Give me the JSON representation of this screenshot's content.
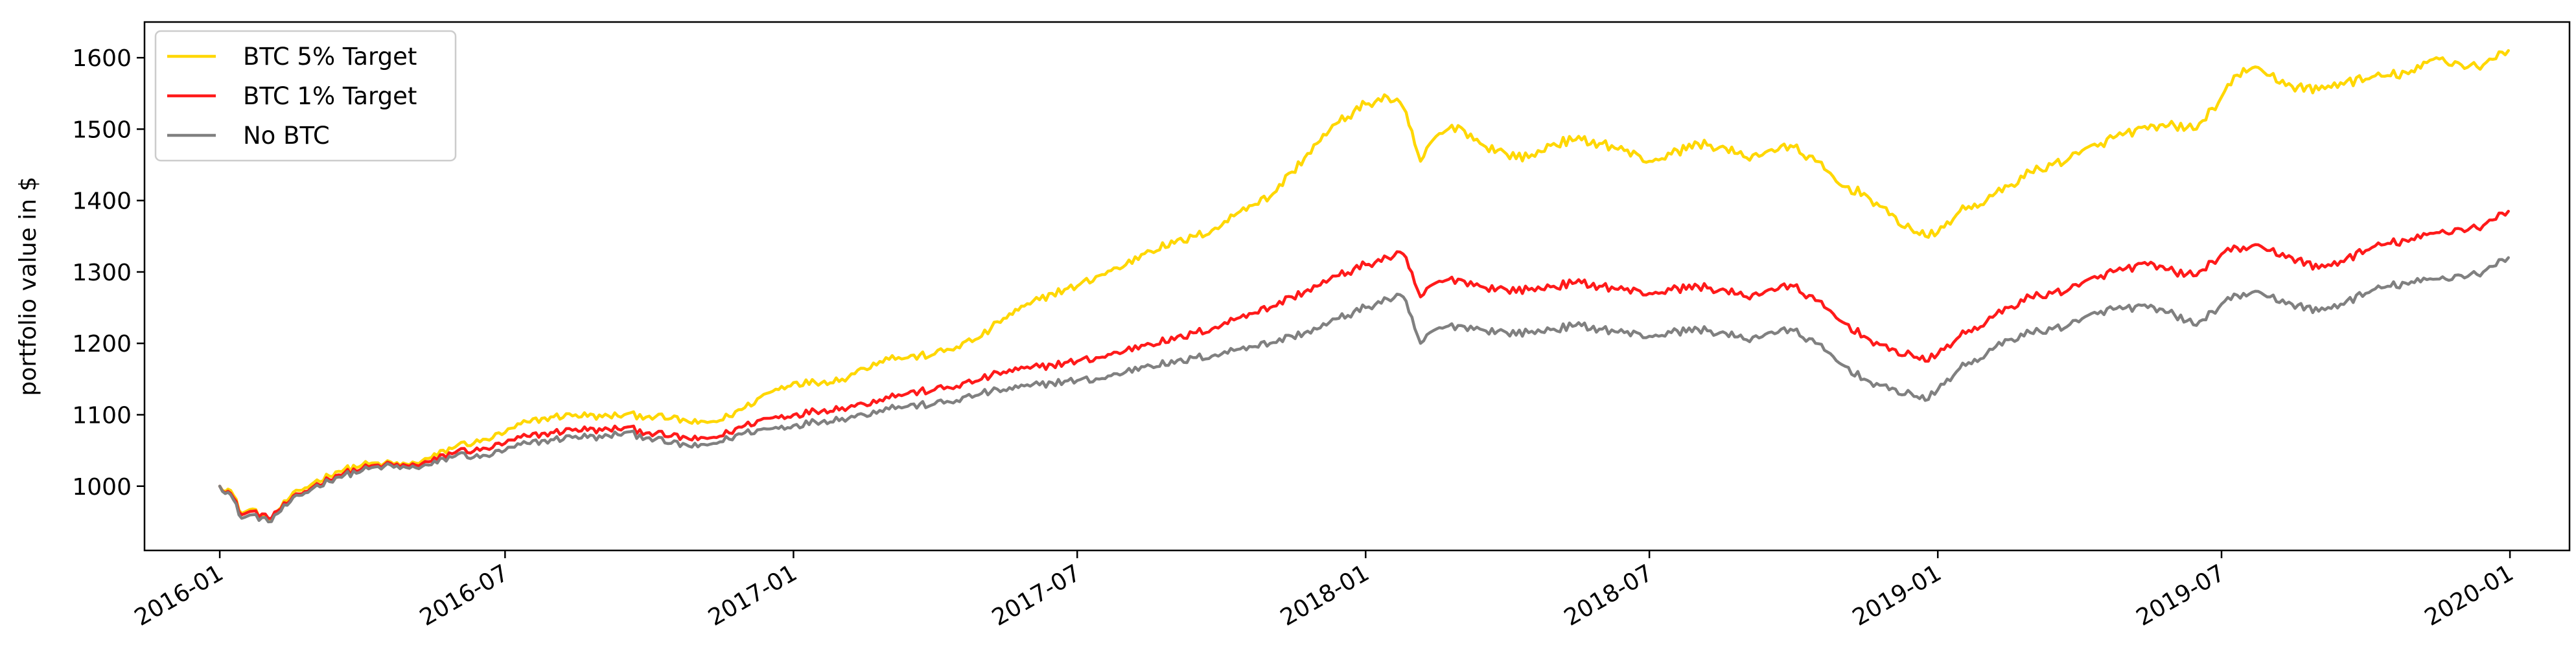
{
  "chart_data": {
    "type": "line",
    "title": "",
    "xlabel": "",
    "ylabel": "portfolio value in $",
    "x_range": [
      "2015-11-14",
      "2020-02-08"
    ],
    "ylim": [
      910,
      1650
    ],
    "grid": false,
    "legend_position": "top-left",
    "x_ticks": [
      {
        "date": "2016-01-01",
        "label": "2016-01"
      },
      {
        "date": "2016-07-01",
        "label": "2016-07"
      },
      {
        "date": "2017-01-01",
        "label": "2017-01"
      },
      {
        "date": "2017-07-01",
        "label": "2017-07"
      },
      {
        "date": "2018-01-01",
        "label": "2018-01"
      },
      {
        "date": "2018-07-01",
        "label": "2018-07"
      },
      {
        "date": "2019-01-01",
        "label": "2019-01"
      },
      {
        "date": "2019-07-01",
        "label": "2019-07"
      },
      {
        "date": "2020-01-01",
        "label": "2020-01"
      }
    ],
    "y_ticks": [
      1000,
      1100,
      1200,
      1300,
      1400,
      1500,
      1600
    ],
    "x": [
      "2016-01-01",
      "2016-01-08",
      "2016-01-15",
      "2016-01-22",
      "2016-02-01",
      "2016-02-15",
      "2016-03-01",
      "2016-03-15",
      "2016-04-01",
      "2016-04-15",
      "2016-05-01",
      "2016-05-15",
      "2016-06-01",
      "2016-06-15",
      "2016-07-01",
      "2016-07-15",
      "2016-08-01",
      "2016-08-15",
      "2016-09-01",
      "2016-09-15",
      "2016-10-01",
      "2016-10-15",
      "2016-11-01",
      "2016-11-15",
      "2016-12-01",
      "2016-12-15",
      "2017-01-01",
      "2017-01-15",
      "2017-02-01",
      "2017-02-15",
      "2017-03-01",
      "2017-03-15",
      "2017-04-01",
      "2017-04-15",
      "2017-05-01",
      "2017-05-15",
      "2017-06-01",
      "2017-06-15",
      "2017-07-01",
      "2017-07-15",
      "2017-08-01",
      "2017-08-15",
      "2017-09-01",
      "2017-09-15",
      "2017-10-01",
      "2017-10-15",
      "2017-11-01",
      "2017-11-15",
      "2017-12-01",
      "2017-12-15",
      "2018-01-01",
      "2018-01-15",
      "2018-01-25",
      "2018-02-05",
      "2018-02-15",
      "2018-03-01",
      "2018-03-15",
      "2018-04-01",
      "2018-04-15",
      "2018-05-01",
      "2018-05-15",
      "2018-06-01",
      "2018-06-15",
      "2018-07-01",
      "2018-07-15",
      "2018-08-01",
      "2018-08-15",
      "2018-09-01",
      "2018-09-15",
      "2018-10-01",
      "2018-10-15",
      "2018-11-01",
      "2018-11-15",
      "2018-12-01",
      "2018-12-15",
      "2018-12-24",
      "2019-01-01",
      "2019-01-15",
      "2019-02-01",
      "2019-02-15",
      "2019-03-01",
      "2019-03-15",
      "2019-04-01",
      "2019-04-15",
      "2019-05-01",
      "2019-05-15",
      "2019-06-01",
      "2019-06-15",
      "2019-07-01",
      "2019-07-15",
      "2019-08-01",
      "2019-08-15",
      "2019-09-01",
      "2019-09-15",
      "2019-10-01",
      "2019-10-15",
      "2019-11-01",
      "2019-11-15",
      "2019-12-01",
      "2019-12-15",
      "2019-12-31"
    ],
    "series": [
      {
        "name": "BTC 5% Target",
        "color": "#FFD700",
        "values": [
          1000,
          994,
          962,
          968,
          952,
          985,
          1005,
          1020,
          1030,
          1032,
          1030,
          1040,
          1058,
          1062,
          1075,
          1090,
          1097,
          1100,
          1097,
          1100,
          1098,
          1095,
          1088,
          1092,
          1110,
          1130,
          1145,
          1145,
          1150,
          1165,
          1180,
          1180,
          1185,
          1195,
          1210,
          1235,
          1255,
          1270,
          1280,
          1295,
          1310,
          1330,
          1340,
          1350,
          1365,
          1390,
          1405,
          1440,
          1480,
          1510,
          1535,
          1545,
          1530,
          1455,
          1490,
          1505,
          1480,
          1465,
          1460,
          1480,
          1485,
          1480,
          1470,
          1455,
          1465,
          1480,
          1475,
          1460,
          1470,
          1475,
          1455,
          1420,
          1410,
          1380,
          1360,
          1350,
          1355,
          1385,
          1400,
          1420,
          1440,
          1450,
          1465,
          1480,
          1495,
          1500,
          1505,
          1500,
          1545,
          1585,
          1575,
          1560,
          1555,
          1565,
          1570,
          1575,
          1580,
          1600,
          1590,
          1590,
          1610
        ]
      },
      {
        "name": "BTC 1% Target",
        "color": "#FF1A1A",
        "values": [
          1000,
          990,
          960,
          965,
          955,
          980,
          1000,
          1015,
          1025,
          1030,
          1028,
          1035,
          1050,
          1050,
          1060,
          1070,
          1075,
          1080,
          1078,
          1082,
          1075,
          1070,
          1065,
          1070,
          1085,
          1095,
          1100,
          1105,
          1110,
          1115,
          1125,
          1130,
          1135,
          1140,
          1150,
          1160,
          1165,
          1170,
          1175,
          1180,
          1190,
          1200,
          1205,
          1215,
          1225,
          1240,
          1250,
          1265,
          1280,
          1295,
          1310,
          1320,
          1325,
          1265,
          1285,
          1290,
          1280,
          1275,
          1275,
          1280,
          1285,
          1280,
          1275,
          1270,
          1275,
          1280,
          1275,
          1265,
          1275,
          1280,
          1260,
          1230,
          1210,
          1190,
          1185,
          1175,
          1185,
          1210,
          1230,
          1250,
          1265,
          1270,
          1280,
          1295,
          1305,
          1310,
          1300,
          1295,
          1325,
          1335,
          1330,
          1320,
          1305,
          1315,
          1330,
          1340,
          1345,
          1355,
          1360,
          1365,
          1385
        ]
      },
      {
        "name": "No BTC",
        "color": "#808080",
        "values": [
          1000,
          988,
          955,
          960,
          950,
          978,
          998,
          1012,
          1022,
          1028,
          1025,
          1030,
          1045,
          1040,
          1050,
          1060,
          1065,
          1070,
          1068,
          1075,
          1068,
          1060,
          1055,
          1062,
          1075,
          1080,
          1085,
          1090,
          1095,
          1100,
          1110,
          1112,
          1115,
          1120,
          1130,
          1135,
          1140,
          1145,
          1148,
          1150,
          1160,
          1170,
          1172,
          1180,
          1185,
          1195,
          1200,
          1210,
          1220,
          1235,
          1250,
          1262,
          1265,
          1200,
          1220,
          1225,
          1220,
          1215,
          1215,
          1220,
          1225,
          1220,
          1215,
          1210,
          1215,
          1220,
          1215,
          1205,
          1215,
          1218,
          1200,
          1170,
          1150,
          1135,
          1130,
          1120,
          1135,
          1165,
          1185,
          1205,
          1215,
          1220,
          1230,
          1245,
          1250,
          1250,
          1240,
          1225,
          1255,
          1270,
          1265,
          1255,
          1245,
          1255,
          1270,
          1280,
          1285,
          1290,
          1295,
          1300,
          1320
        ]
      }
    ]
  }
}
